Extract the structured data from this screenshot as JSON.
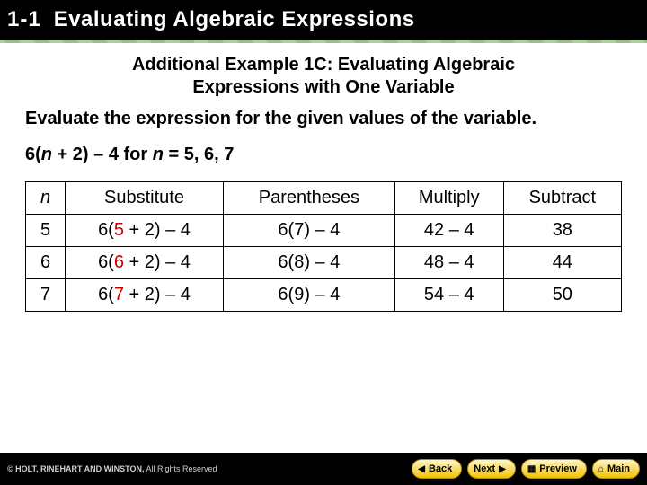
{
  "header": {
    "section_num": "1-1",
    "title": "Evaluating Algebraic Expressions"
  },
  "example": {
    "title_line1": "Additional Example 1C: Evaluating Algebraic",
    "title_line2": "Expressions with One Variable",
    "prompt": "Evaluate the expression for the given values of the variable.",
    "expression_pre": "6(",
    "expression_var": "n",
    "expression_mid": " + 2) – 4 for ",
    "expression_var2": "n",
    "expression_post": " = 5, 6, 7"
  },
  "table": {
    "headers": {
      "n": "n",
      "sub": "Substitute",
      "paren": "Parentheses",
      "mult": "Multiply",
      "subt": "Subtract"
    },
    "rows": [
      {
        "n": "5",
        "sub_a": "6(",
        "sub_red": "5",
        "sub_b": " + 2) – 4",
        "paren": "6(7) – 4",
        "mult": "42 – 4",
        "subt": "38"
      },
      {
        "n": "6",
        "sub_a": "6(",
        "sub_red": "6",
        "sub_b": " + 2) – 4",
        "paren": "6(8) – 4",
        "mult": "48 – 4",
        "subt": "44"
      },
      {
        "n": "7",
        "sub_a": "6(",
        "sub_red": "7",
        "sub_b": " + 2) – 4",
        "paren": "6(9) – 4",
        "mult": "54 – 4",
        "subt": "50"
      }
    ]
  },
  "footer": {
    "copyright_bold": "© HOLT, RINEHART AND WINSTON,",
    "copyright_rest": " All Rights Reserved",
    "buttons": {
      "back": "Back",
      "next": "Next",
      "preview": "Preview",
      "main": "Main"
    }
  },
  "colors": {
    "header_bg": "#000000",
    "accent_green_a": "#6aa84f",
    "accent_green_b": "#548235",
    "subst_red": "#cc0000",
    "btn_grad_top": "#fff7cf",
    "btn_grad_bot": "#f2c200"
  }
}
